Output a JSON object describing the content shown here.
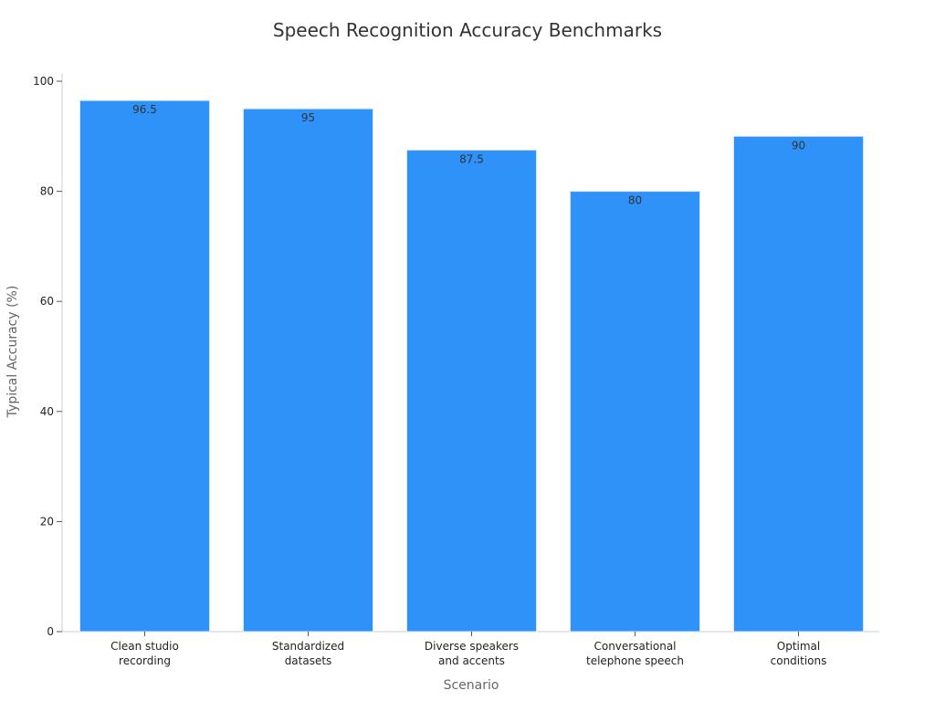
{
  "chart_data": {
    "type": "bar",
    "title": "Speech Recognition Accuracy Benchmarks",
    "xlabel": "Scenario",
    "ylabel": "Typical Accuracy (%)",
    "categories": [
      [
        "Clean studio",
        "recording"
      ],
      [
        "Standardized",
        "datasets"
      ],
      [
        "Diverse speakers",
        "and accents"
      ],
      [
        "Conversational",
        "telephone speech"
      ],
      [
        "Optimal",
        "conditions"
      ]
    ],
    "values": [
      96.5,
      95,
      87.5,
      80,
      90
    ],
    "ylim": [
      0,
      100
    ],
    "yticks": [
      0,
      20,
      40,
      60,
      80,
      100
    ],
    "grid": false,
    "legend": "none",
    "bar_color": "#2f92f9",
    "bar_edge_color": "#d6e8fb"
  }
}
